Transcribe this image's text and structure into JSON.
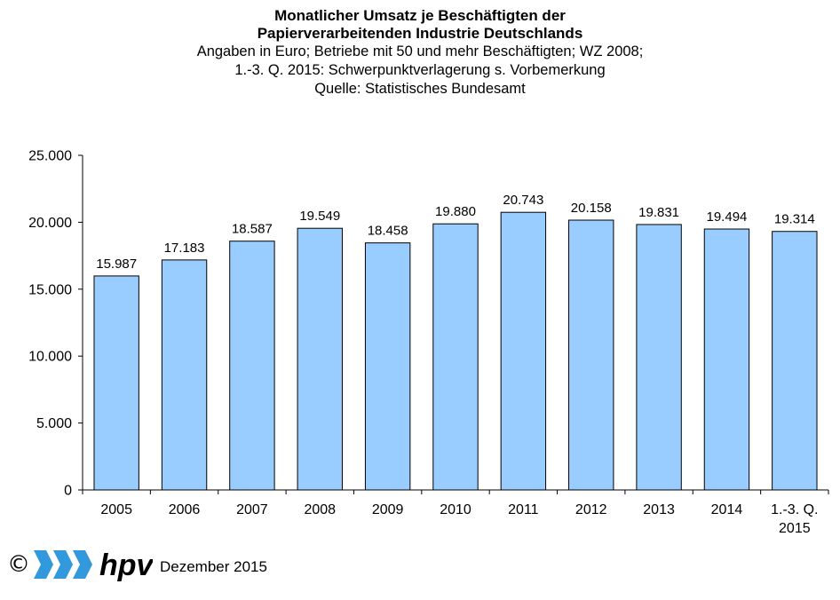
{
  "header": {
    "title_line1": "Monatlicher Umsatz je Beschäftigten der",
    "title_line2": "Papierverarbeitenden Industrie Deutschlands",
    "subtitle_line1": "Angaben in Euro; Betriebe mit 50 und mehr Beschäftigten; WZ 2008;",
    "subtitle_line2": "1.-3. Q. 2015: Schwerpunktverlagerung s. Vorbemerkung",
    "subtitle_line3": "Quelle: Statistisches Bundesamt"
  },
  "footer": {
    "copyright": "©",
    "logo_text": "hpv",
    "date": "Dezember 2015"
  },
  "colors": {
    "bar_fill": "#99ccff",
    "bar_stroke": "#000000",
    "axis": "#000000",
    "logo_blue": "#3399dd"
  },
  "chart_data": {
    "type": "bar",
    "title": "Monatlicher Umsatz je Beschäftigten der Papierverarbeitenden Industrie Deutschlands",
    "subtitle": "Angaben in Euro; Betriebe mit 50 und mehr Beschäftigten; WZ 2008; 1.-3. Q. 2015: Schwerpunktverlagerung s. Vorbemerkung; Quelle: Statistisches Bundesamt",
    "xlabel": "",
    "ylabel": "",
    "categories": [
      "2005",
      "2006",
      "2007",
      "2008",
      "2009",
      "2010",
      "2011",
      "2012",
      "2013",
      "2014",
      "1.-3. Q. 2015"
    ],
    "category_lines": [
      [
        "2005"
      ],
      [
        "2006"
      ],
      [
        "2007"
      ],
      [
        "2008"
      ],
      [
        "2009"
      ],
      [
        "2010"
      ],
      [
        "2011"
      ],
      [
        "2012"
      ],
      [
        "2013"
      ],
      [
        "2014"
      ],
      [
        "1.-3. Q.",
        "2015"
      ]
    ],
    "values": [
      15987,
      17183,
      18587,
      19549,
      18458,
      19880,
      20743,
      20158,
      19831,
      19494,
      19314
    ],
    "value_labels": [
      "15.987",
      "17.183",
      "18.587",
      "19.549",
      "18.458",
      "19.880",
      "20.743",
      "20.158",
      "19.831",
      "19.494",
      "19.314"
    ],
    "ylim": [
      0,
      25000
    ],
    "yticks": [
      0,
      5000,
      10000,
      15000,
      20000,
      25000
    ],
    "ytick_labels": [
      "0",
      "5.000",
      "10.000",
      "15.000",
      "20.000",
      "25.000"
    ],
    "grid": false,
    "legend": "none"
  }
}
